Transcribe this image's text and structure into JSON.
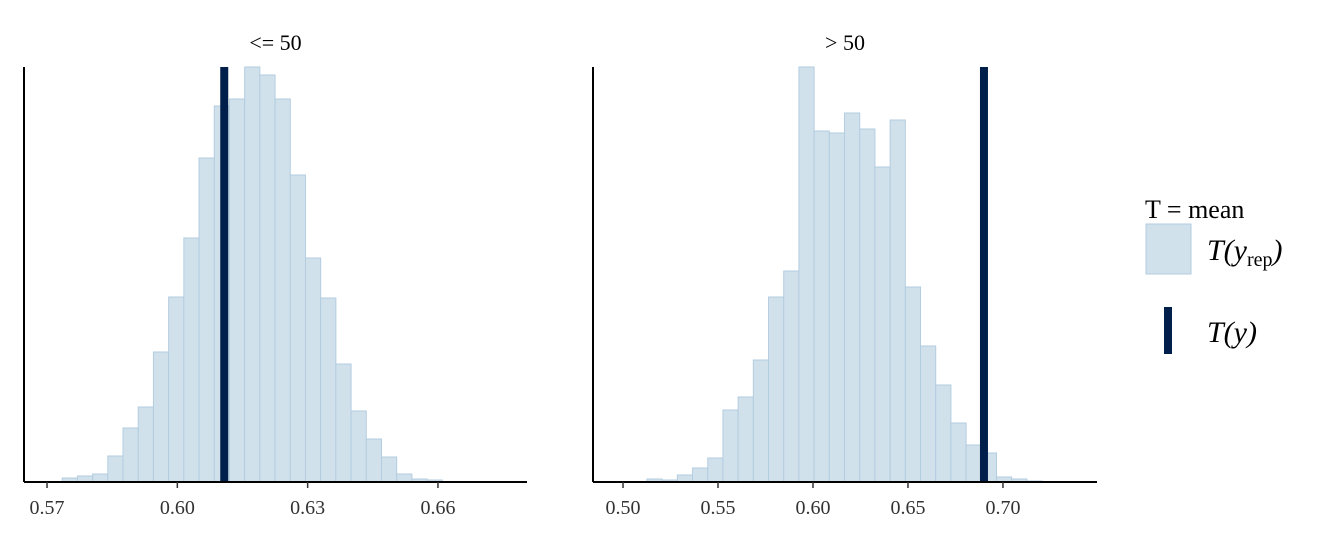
{
  "chart_data": [
    {
      "type": "histogram",
      "title": "<= 50",
      "bins": [
        0.5735,
        0.577,
        0.5805,
        0.584,
        0.5875,
        0.591,
        0.5945,
        0.598,
        0.6015,
        0.605,
        0.6085,
        0.612,
        0.6155,
        0.619,
        0.6225,
        0.626,
        0.6295,
        0.633,
        0.6365,
        0.64,
        0.6435,
        0.647,
        0.6505,
        0.654,
        0.6575,
        0.661
      ],
      "values": [
        4,
        6,
        8,
        26,
        54,
        75,
        130,
        185,
        244,
        324,
        376,
        383,
        415,
        407,
        383,
        307,
        224,
        184,
        118,
        71,
        43,
        25,
        8,
        3,
        2
      ],
      "color": "#d1e1ec",
      "edgecolor": "#b3cde0",
      "stat": 0.6108,
      "stat_color": "#011f4b",
      "xlim": [
        0.5647,
        0.6805
      ],
      "xticks": [
        0.57,
        {
          "value": 0.6,
          "label": "0.60"
        },
        0.63,
        0.66
      ],
      "ylim": [
        0,
        415
      ]
    },
    {
      "type": "histogram",
      "title": "> 50",
      "bins": [
        0.5126,
        0.5206,
        0.5286,
        0.5366,
        0.5446,
        0.5526,
        0.5606,
        0.5686,
        0.5766,
        0.5846,
        0.5926,
        0.6006,
        0.6086,
        0.6166,
        0.6246,
        0.6326,
        0.6406,
        0.6486,
        0.6566,
        0.6646,
        0.6726,
        0.6806,
        0.6886,
        0.6966,
        0.7046,
        0.7126,
        0.7206
      ],
      "values": [
        3,
        2,
        7,
        14,
        24,
        72,
        85,
        122,
        185,
        211,
        415,
        351,
        349,
        369,
        353,
        315,
        362,
        195,
        136,
        97,
        59,
        37,
        29,
        5,
        3,
        1
      ],
      "color": "#d1e1ec",
      "edgecolor": "#b3cde0",
      "stat": 0.69,
      "stat_color": "#011f4b",
      "xlim": [
        0.4842,
        0.7495
      ],
      "xticks": [
        {
          "value": 0.5,
          "label": "0.50"
        },
        0.55,
        {
          "value": 0.6,
          "label": "0.60"
        },
        0.65,
        {
          "value": 0.7,
          "label": "0.70"
        }
      ],
      "ylim": [
        0,
        415
      ]
    }
  ],
  "legend": {
    "title": "T = mean",
    "entries": [
      {
        "label": "T(y",
        "sub": "rep",
        "close": ")"
      },
      {
        "label": "T(y",
        "close": ")"
      }
    ]
  }
}
